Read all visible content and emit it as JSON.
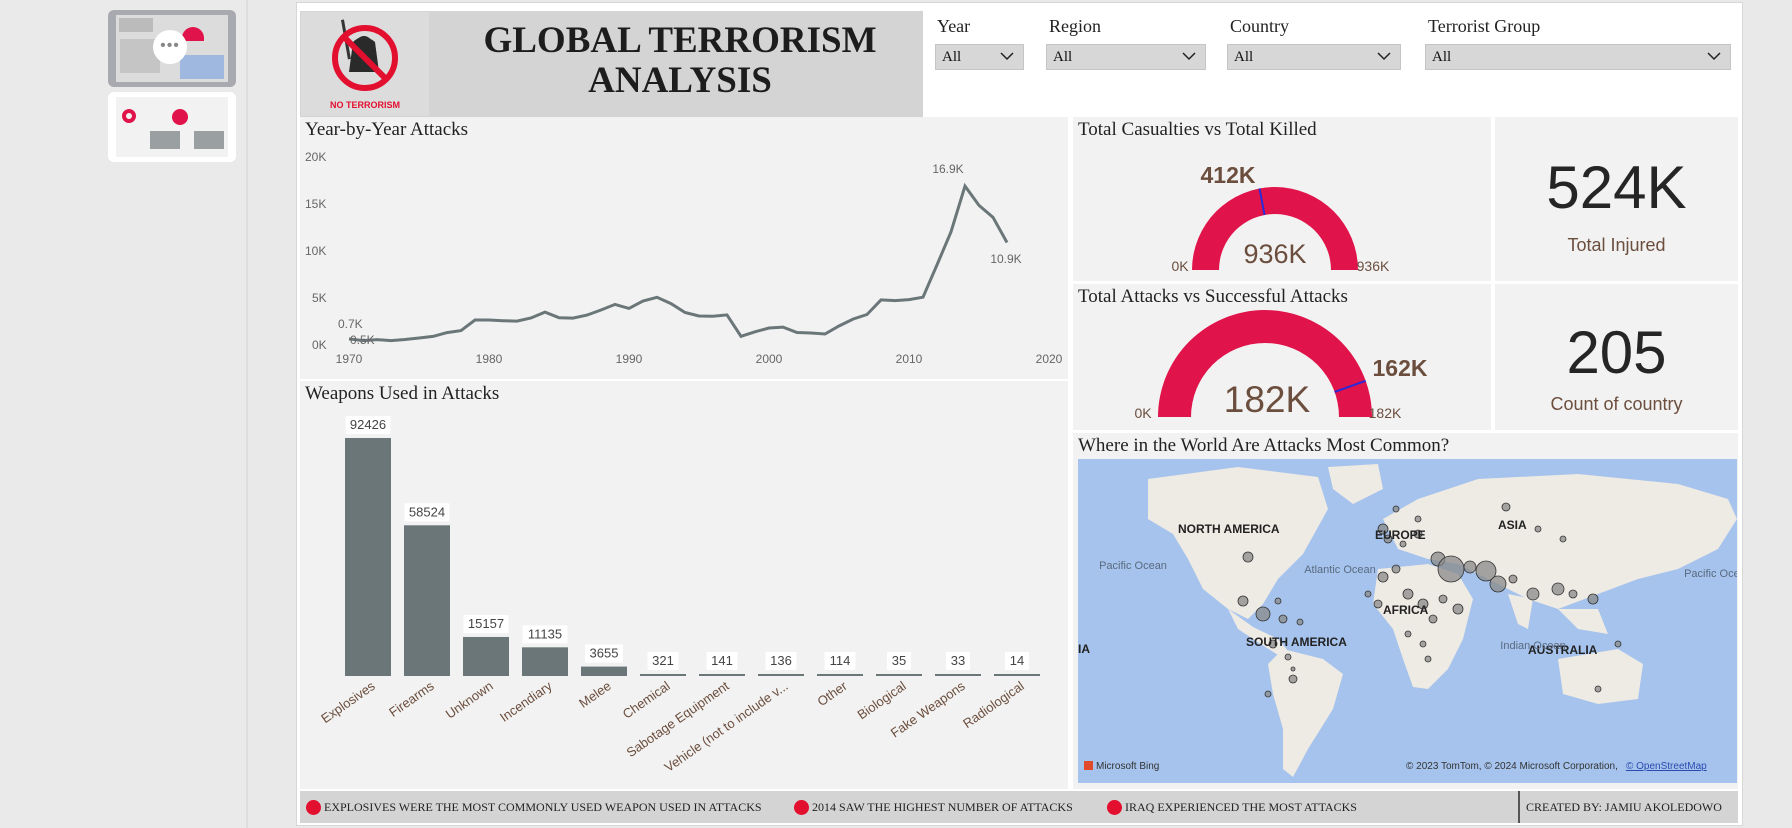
{
  "sidebar": {
    "more_label": "•••"
  },
  "header": {
    "logo_text": "NO TERRORISM",
    "title": "GLOBAL TERRORISM ANALYSIS"
  },
  "filters": [
    {
      "label": "Year",
      "value": "All"
    },
    {
      "label": "Region",
      "value": "All"
    },
    {
      "label": "Country",
      "value": "All"
    },
    {
      "label": "Terrorist Group",
      "value": "All"
    }
  ],
  "line_panel": {
    "title": "Year-by-Year Attacks",
    "y_ticks": [
      "20K",
      "15K",
      "10K",
      "5K",
      "0K"
    ],
    "x_ticks": [
      "1970",
      "1980",
      "1990",
      "2000",
      "2010",
      "2020"
    ],
    "labels": {
      "first": "0.7K",
      "second": "0.5K",
      "peak": "16.9K",
      "last": "10.9K"
    }
  },
  "bar_panel": {
    "title": "Weapons Used in Attacks"
  },
  "gauge1": {
    "title": "Total Casualties vs Total Killed",
    "value_label": "412K",
    "center_label": "936K",
    "min_label": "0K",
    "max_label": "936K",
    "value": 412,
    "max": 936
  },
  "gauge2": {
    "title": "Total Attacks vs Successful Attacks",
    "value_label": "162K",
    "center_label": "182K",
    "min_label": "0K",
    "max_label": "182K",
    "value": 162,
    "max": 182
  },
  "kpi1": {
    "value": "524K",
    "label": "Total Injured"
  },
  "kpi2": {
    "value": "205",
    "label": "Count of country"
  },
  "map_panel": {
    "title": "Where in the World Are Attacks Most Common?",
    "labels": {
      "north_america": "NORTH AMERICA",
      "europe": "EUROPE",
      "asia": "ASIA",
      "africa": "AFRICA",
      "south_america": "SOUTH AMERICA",
      "australia": "AUSTRALIA",
      "pacific_left": "Pacific Ocean",
      "atlantic": "Atlantic Ocean",
      "indian": "Indian Ocean",
      "pacific_right": "Pacific Ocean",
      "ia": "IA"
    },
    "bing_label": "Microsoft Bing",
    "copyright": "© 2023 TomTom, © 2024 Microsoft Corporation,",
    "osm_link": "© OpenStreetMap",
    "colors": {
      "water": "#a5c3ec",
      "land": "#eeeae4",
      "bubble": "#8a8a8a"
    }
  },
  "footer": {
    "insights": [
      "EXPLOSIVES WERE THE MOST COMMONLY USED WEAPON USED IN ATTACKS",
      "2014 SAW THE HIGHEST NUMBER OF ATTACKS",
      "IRAQ EXPERIENCED THE MOST ATTACKS"
    ],
    "credit": "CREATED BY: JAMIU AKOLEDOWO"
  },
  "colors": {
    "accent": "#e0134a",
    "gauge_bg": "#e0134a",
    "gauge_needle": "#2a2ad8",
    "series": "#6b7679",
    "kpi_text": "#252525",
    "label_brown": "#6b4e3d"
  },
  "chart_data": [
    {
      "type": "line",
      "title": "Year-by-Year Attacks",
      "x": [
        1970,
        1971,
        1972,
        1973,
        1974,
        1975,
        1976,
        1977,
        1978,
        1979,
        1980,
        1981,
        1982,
        1983,
        1984,
        1985,
        1986,
        1987,
        1988,
        1989,
        1990,
        1991,
        1992,
        1993,
        1994,
        1995,
        1996,
        1997,
        1998,
        1999,
        2000,
        2001,
        2002,
        2003,
        2004,
        2005,
        2006,
        2007,
        2008,
        2009,
        2010,
        2011,
        2012,
        2013,
        2014,
        2015,
        2016,
        2017
      ],
      "y": [
        650,
        470,
        570,
        470,
        580,
        740,
        920,
        1320,
        1530,
        2660,
        2660,
        2590,
        2540,
        2870,
        3500,
        2900,
        2860,
        3180,
        3720,
        4320,
        3890,
        4680,
        5070,
        4400,
        3460,
        3080,
        3060,
        3200,
        930,
        1400,
        1810,
        1900,
        1330,
        1280,
        1170,
        2020,
        2760,
        3240,
        4800,
        4720,
        4830,
        5080,
        8520,
        12040,
        16900,
        14850,
        13590,
        10900
      ],
      "xlim": [
        1970,
        2020
      ],
      "ylim": [
        0,
        20000
      ],
      "xlabel": "",
      "ylabel": ""
    },
    {
      "type": "bar",
      "title": "Weapons Used in Attacks",
      "categories": [
        "Explosives",
        "Firearms",
        "Unknown",
        "Incendiary",
        "Melee",
        "Chemical",
        "Sabotage Equipment",
        "Vehicle (not to include v...",
        "Other",
        "Biological",
        "Fake Weapons",
        "Radiological"
      ],
      "values": [
        92426,
        58524,
        15157,
        11135,
        3655,
        321,
        141,
        136,
        114,
        35,
        33,
        14
      ],
      "xlabel": "",
      "ylabel": ""
    }
  ]
}
